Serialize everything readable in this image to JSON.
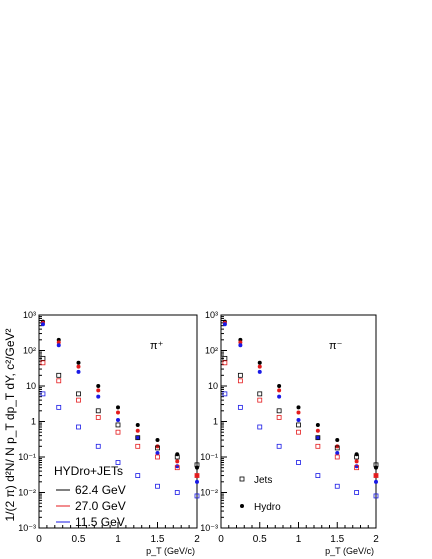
{
  "figure": {
    "ylabel": "1/(2 π) d²N/ N p_T dp_T dY, c²/GeV²",
    "xlabel": "p_T (GeV/c)"
  },
  "legend": {
    "header": "HYDro+JETs",
    "energies": [
      {
        "label": "62.4 GeV",
        "color": "#000000"
      },
      {
        "label": "27.0 GeV",
        "color": "#e41a1c"
      },
      {
        "label": "11.5 GeV",
        "color": "#1a1ae6"
      }
    ],
    "markers": [
      {
        "label": "Jets",
        "marker": "open-square"
      },
      {
        "label": "Hydro",
        "marker": "filled-circle"
      }
    ]
  },
  "chart_data": [
    {
      "type": "scatter",
      "panel_label": "π⁺",
      "xlim": [
        0,
        2
      ],
      "ylim": [
        0.001,
        1000
      ],
      "yscale": "log",
      "xticks": [
        "0",
        "0.5",
        "1",
        "1.5",
        "2"
      ],
      "yticks": [
        "10⁻³",
        "10⁻²",
        "10⁻¹",
        "1",
        "10",
        "10²",
        "10³"
      ],
      "series": [
        {
          "name": "62.4 GeV",
          "component": "Hydro",
          "color": "#000000",
          "marker": "filled-circle",
          "x": [
            0.05,
            0.25,
            0.5,
            0.75,
            1.0,
            1.25,
            1.5,
            1.75,
            2.0
          ],
          "y": [
            650,
            200,
            45,
            10,
            2.5,
            0.8,
            0.3,
            0.12,
            0.05
          ]
        },
        {
          "name": "27.0 GeV",
          "component": "Hydro",
          "color": "#e41a1c",
          "marker": "filled-circle",
          "x": [
            0.05,
            0.25,
            0.5,
            0.75,
            1.0,
            1.25,
            1.5,
            1.75,
            2.0
          ],
          "y": [
            600,
            170,
            35,
            7.5,
            1.8,
            0.55,
            0.2,
            0.075,
            0.03
          ]
        },
        {
          "name": "11.5 GeV",
          "component": "Hydro",
          "color": "#1a1ae6",
          "marker": "filled-circle",
          "x": [
            0.05,
            0.25,
            0.5,
            0.75,
            1.0,
            1.25,
            1.5,
            1.75,
            2.0
          ],
          "y": [
            550,
            140,
            25,
            5,
            1.1,
            0.35,
            0.13,
            0.055,
            0.02
          ]
        },
        {
          "name": "62.4 GeV",
          "component": "Jets",
          "color": "#000000",
          "marker": "open-square",
          "x": [
            0.05,
            0.25,
            0.5,
            0.75,
            1.0,
            1.25,
            1.5,
            1.75,
            2.0
          ],
          "y": [
            60,
            20,
            6,
            2.0,
            0.8,
            0.35,
            0.18,
            0.1,
            0.06
          ]
        },
        {
          "name": "27.0 GeV",
          "component": "Jets",
          "color": "#e41a1c",
          "marker": "open-square",
          "x": [
            0.05,
            0.25,
            0.5,
            0.75,
            1.0,
            1.25,
            1.5,
            1.75,
            2.0
          ],
          "y": [
            45,
            14,
            4,
            1.3,
            0.5,
            0.2,
            0.1,
            0.05,
            0.03
          ]
        },
        {
          "name": "11.5 GeV",
          "component": "Jets",
          "color": "#1a1ae6",
          "marker": "open-square",
          "x": [
            0.05,
            0.25,
            0.5,
            0.75,
            1.0,
            1.25,
            1.5,
            1.75,
            2.0
          ],
          "y": [
            6,
            2.5,
            0.7,
            0.2,
            0.07,
            0.03,
            0.015,
            0.01,
            0.008
          ]
        }
      ]
    },
    {
      "type": "scatter",
      "panel_label": "π⁻",
      "xlim": [
        0,
        2
      ],
      "ylim": [
        0.001,
        1000
      ],
      "yscale": "log",
      "xticks": [
        "0",
        "0.5",
        "1",
        "1.5",
        "2"
      ],
      "yticks": [
        "10⁻³",
        "10⁻²",
        "10⁻¹",
        "1",
        "10",
        "10²",
        "10³"
      ],
      "series": [
        {
          "name": "62.4 GeV",
          "component": "Hydro",
          "color": "#000000",
          "marker": "filled-circle",
          "x": [
            0.05,
            0.25,
            0.5,
            0.75,
            1.0,
            1.25,
            1.5,
            1.75,
            2.0
          ],
          "y": [
            650,
            200,
            45,
            10,
            2.5,
            0.8,
            0.3,
            0.12,
            0.05
          ]
        },
        {
          "name": "27.0 GeV",
          "component": "Hydro",
          "color": "#e41a1c",
          "marker": "filled-circle",
          "x": [
            0.05,
            0.25,
            0.5,
            0.75,
            1.0,
            1.25,
            1.5,
            1.75,
            2.0
          ],
          "y": [
            600,
            170,
            35,
            7.5,
            1.8,
            0.55,
            0.2,
            0.075,
            0.03
          ]
        },
        {
          "name": "11.5 GeV",
          "component": "Hydro",
          "color": "#1a1ae6",
          "marker": "filled-circle",
          "x": [
            0.05,
            0.25,
            0.5,
            0.75,
            1.0,
            1.25,
            1.5,
            1.75,
            2.0
          ],
          "y": [
            550,
            140,
            25,
            5,
            1.1,
            0.35,
            0.13,
            0.055,
            0.02
          ]
        },
        {
          "name": "62.4 GeV",
          "component": "Jets",
          "color": "#000000",
          "marker": "open-square",
          "x": [
            0.05,
            0.25,
            0.5,
            0.75,
            1.0,
            1.25,
            1.5,
            1.75,
            2.0
          ],
          "y": [
            60,
            20,
            6,
            2.0,
            0.8,
            0.35,
            0.18,
            0.1,
            0.06
          ]
        },
        {
          "name": "27.0 GeV",
          "component": "Jets",
          "color": "#e41a1c",
          "marker": "open-square",
          "x": [
            0.05,
            0.25,
            0.5,
            0.75,
            1.0,
            1.25,
            1.5,
            1.75,
            2.0
          ],
          "y": [
            45,
            14,
            4,
            1.3,
            0.5,
            0.2,
            0.1,
            0.05,
            0.03
          ]
        },
        {
          "name": "11.5 GeV",
          "component": "Jets",
          "color": "#1a1ae6",
          "marker": "open-square",
          "x": [
            0.05,
            0.25,
            0.5,
            0.75,
            1.0,
            1.25,
            1.5,
            1.75,
            2.0
          ],
          "y": [
            6,
            2.5,
            0.7,
            0.2,
            0.07,
            0.03,
            0.015,
            0.01,
            0.008
          ]
        }
      ]
    }
  ]
}
